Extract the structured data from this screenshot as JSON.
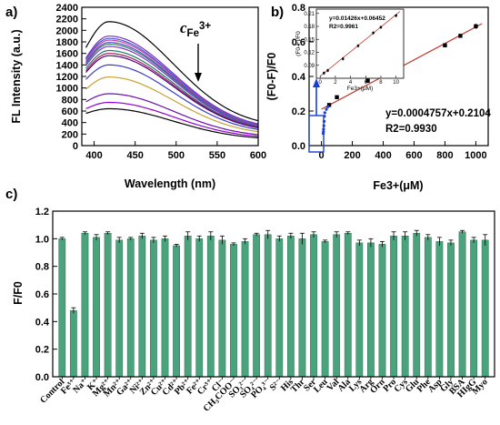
{
  "panels": {
    "a": "a)",
    "b": "b)",
    "c": "c)"
  },
  "chart_data": [
    {
      "id": "a",
      "type": "line",
      "xlabel": "Wavelength (nm)",
      "ylabel": "FL Intensity (a.u.)",
      "xlim": [
        385,
        600
      ],
      "ylim": [
        0,
        2400
      ],
      "xticks": [
        400,
        450,
        500,
        550,
        600
      ],
      "yticks": [
        0,
        200,
        400,
        600,
        800,
        1000,
        1200,
        1400,
        1600,
        1800,
        2000,
        2200,
        2400
      ],
      "annotation": {
        "text": "c",
        "subscript": "Fe",
        "superscript": "3+"
      },
      "peak_wavelength": 418,
      "curves": [
        {
          "color": "#000000",
          "peak": 2150,
          "start": 1700,
          "end": 310
        },
        {
          "color": "#7B2FBE",
          "peak": 1900,
          "start": 1520,
          "end": 270
        },
        {
          "color": "#3D5AD8",
          "peak": 1860,
          "start": 1500,
          "end": 260
        },
        {
          "color": "#C040A0",
          "peak": 1830,
          "start": 1470,
          "end": 255
        },
        {
          "color": "#5A3FD0",
          "peak": 1790,
          "start": 1440,
          "end": 250
        },
        {
          "color": "#2E8B57",
          "peak": 1760,
          "start": 1420,
          "end": 245
        },
        {
          "color": "#8A2BE2",
          "peak": 1720,
          "start": 1390,
          "end": 240
        },
        {
          "color": "#1F7A6A",
          "peak": 1650,
          "start": 1340,
          "end": 230
        },
        {
          "color": "#A0205A",
          "peak": 1600,
          "start": 1300,
          "end": 225
        },
        {
          "color": "#4B0082",
          "peak": 1560,
          "start": 1270,
          "end": 220
        },
        {
          "color": "#3A3AC8",
          "peak": 1400,
          "start": 1150,
          "end": 200
        },
        {
          "color": "#C8A030",
          "peak": 1190,
          "start": 980,
          "end": 175
        },
        {
          "color": "#6A0DAD",
          "peak": 900,
          "start": 760,
          "end": 140
        },
        {
          "color": "#9400D3",
          "peak": 750,
          "start": 640,
          "end": 120
        },
        {
          "color": "#000000",
          "peak": 640,
          "start": 560,
          "end": 100
        }
      ]
    },
    {
      "id": "b",
      "type": "scatter",
      "xlabel": "Fe3+(μM)",
      "ylabel": "(F0-F)/F0",
      "xlim": [
        -80,
        1080
      ],
      "ylim": [
        0.0,
        0.8
      ],
      "xticks": [
        0,
        200,
        400,
        600,
        800,
        1000
      ],
      "yticks": [
        0.0,
        0.2,
        0.4,
        0.6,
        0.8
      ],
      "fit": {
        "slope": 0.0004757,
        "intercept": 0.2104,
        "equation": "y=0.0004757x+0.2104",
        "r2": "R2=0.9930"
      },
      "points": [
        {
          "x": 50,
          "y": 0.235,
          "err": 0.01
        },
        {
          "x": 100,
          "y": 0.28,
          "err": 0.01
        },
        {
          "x": 300,
          "y": 0.375,
          "err": 0.012
        },
        {
          "x": 500,
          "y": 0.445,
          "err": 0.025
        },
        {
          "x": 800,
          "y": 0.58,
          "err": 0.01
        },
        {
          "x": 900,
          "y": 0.635,
          "err": 0.01
        },
        {
          "x": 1000,
          "y": 0.69,
          "err": 0.015
        }
      ],
      "low_points": [
        {
          "x": 0,
          "y": 0.07
        },
        {
          "x": 1,
          "y": 0.08
        },
        {
          "x": 2,
          "y": 0.095
        },
        {
          "x": 4,
          "y": 0.115
        },
        {
          "x": 6,
          "y": 0.14
        },
        {
          "x": 8,
          "y": 0.17
        },
        {
          "x": 10,
          "y": 0.19
        },
        {
          "x": 20,
          "y": 0.21
        },
        {
          "x": 30,
          "y": 0.225
        }
      ],
      "inset": {
        "xlabel": "Fe3+(μM)",
        "ylabel": "(F0-F)/F0",
        "xlim": [
          -0.5,
          11
        ],
        "ylim": [
          0.06,
          0.22
        ],
        "xticks": [
          0,
          2,
          4,
          6,
          8,
          10
        ],
        "yticks": [
          0.09,
          0.12,
          0.15,
          0.18,
          0.21
        ],
        "yticklabels": [
          "0.09",
          "0.12",
          "0.15",
          "0.18",
          "0.21"
        ],
        "fit": {
          "slope": 0.01426,
          "intercept": 0.06452,
          "equation": "y=0.01426x+0.06452",
          "r2": "R2=0.9961"
        },
        "points": [
          {
            "x": 0.5,
            "y": 0.072
          },
          {
            "x": 1,
            "y": 0.078
          },
          {
            "x": 3,
            "y": 0.105
          },
          {
            "x": 5,
            "y": 0.135
          },
          {
            "x": 7,
            "y": 0.165
          },
          {
            "x": 8,
            "y": 0.178
          },
          {
            "x": 10,
            "y": 0.205
          }
        ]
      }
    },
    {
      "id": "c",
      "type": "bar",
      "ylabel": "F/F0",
      "ylim": [
        0.0,
        1.2
      ],
      "yticks": [
        0.0,
        0.2,
        0.4,
        0.6,
        0.8,
        1.0,
        1.2
      ],
      "bar_color": "#4BA37D",
      "categories": [
        "Control",
        "Fe3+",
        "Na+",
        "K+",
        "Mg2+",
        "Mn2+",
        "Ga2+",
        "Ni2+",
        "Zn2+",
        "Cu2+",
        "Cd2+",
        "Pb2+",
        "Fe2+",
        "Cr3+",
        "Cl-",
        "CH3COO-",
        "SO32-",
        "SO42-",
        "PO43-",
        "S2-",
        "His",
        "Thr",
        "Ser",
        "Leu",
        "Val",
        "Ala",
        "Lys",
        "Arg",
        "Orn",
        "Pro",
        "Cys",
        "Glu",
        "Phe",
        "Asp",
        "Gly",
        "BSA",
        "HIgG",
        "Myo"
      ],
      "category_labels": [
        "Control",
        "Fe³⁺",
        "Na⁺",
        "K⁺",
        "Mg²⁺",
        "Mn²⁺",
        "Ga²⁺",
        "Ni²⁺",
        "Zn²⁺",
        "Cu²⁺",
        "Cd²⁺",
        "Pb²⁺",
        "Fe²⁺",
        "Cr³⁺",
        "Cl⁻",
        "CH₃COO⁻",
        "SO₃²⁻",
        "SO₄²⁻",
        "PO₄³⁻",
        "S²⁻",
        "His",
        "Thr",
        "Ser",
        "Leu",
        "Val",
        "Ala",
        "Lys",
        "Arg",
        "Orn",
        "Pro",
        "Cys",
        "Glu",
        "Phe",
        "Asp",
        "Gly",
        "BSA",
        "HIgG",
        "Myo"
      ],
      "values": [
        1.0,
        0.48,
        1.04,
        1.01,
        1.04,
        0.99,
        1.0,
        1.02,
        0.99,
        1.0,
        0.95,
        1.02,
        1.0,
        1.02,
        0.99,
        0.96,
        0.98,
        1.03,
        1.03,
        1.0,
        1.02,
        1.0,
        1.03,
        0.98,
        1.03,
        1.04,
        0.97,
        0.97,
        0.96,
        1.02,
        1.02,
        1.04,
        1.01,
        0.98,
        0.97,
        1.05,
        0.99,
        0.99
      ],
      "errors": [
        0.01,
        0.02,
        0.01,
        0.02,
        0.01,
        0.02,
        0.01,
        0.02,
        0.02,
        0.02,
        0.01,
        0.03,
        0.02,
        0.03,
        0.03,
        0.01,
        0.02,
        0.01,
        0.03,
        0.02,
        0.02,
        0.04,
        0.02,
        0.01,
        0.02,
        0.01,
        0.02,
        0.03,
        0.02,
        0.03,
        0.03,
        0.02,
        0.02,
        0.03,
        0.02,
        0.01,
        0.02,
        0.04
      ]
    }
  ]
}
